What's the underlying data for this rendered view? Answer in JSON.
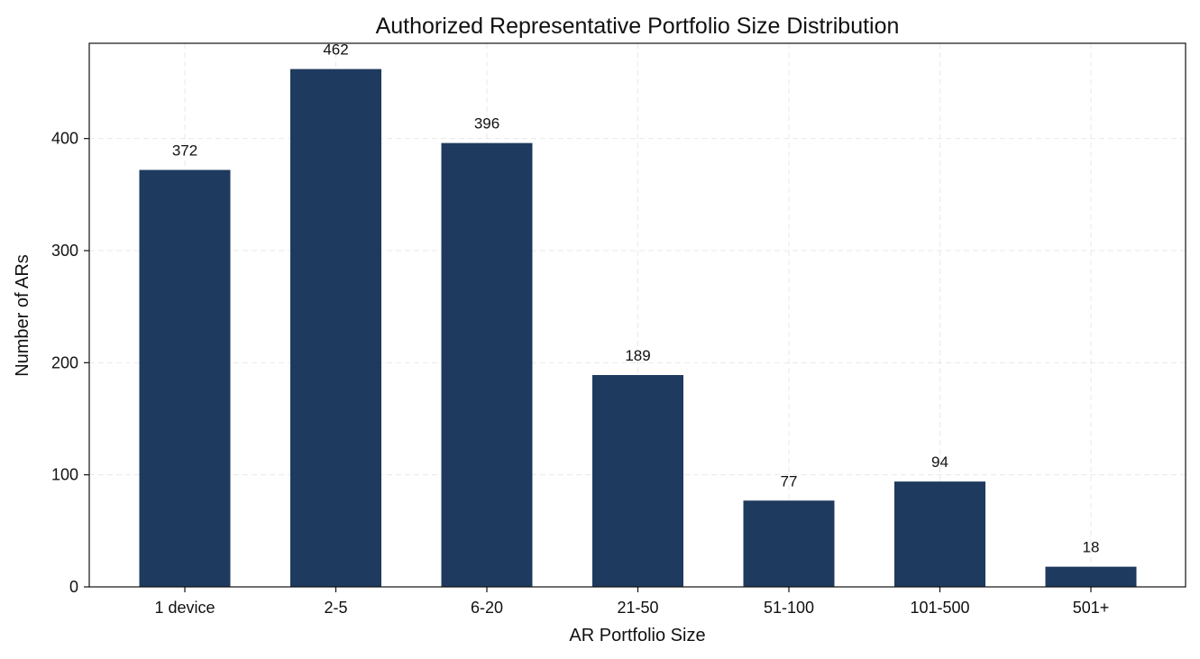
{
  "chart_data": {
    "type": "bar",
    "title": "Authorized Representative Portfolio Size Distribution",
    "xlabel": "AR Portfolio Size",
    "ylabel": "Number of ARs",
    "categories": [
      "1 device",
      "2-5",
      "6-20",
      "21-50",
      "51-100",
      "101-500",
      "501+"
    ],
    "values": [
      372,
      462,
      396,
      189,
      77,
      94,
      18
    ],
    "data_labels": [
      "372",
      "462",
      "396",
      "189",
      "77",
      "94",
      "18"
    ],
    "ylim": [
      0,
      485
    ],
    "yticks": [
      0,
      100,
      200,
      300,
      400
    ],
    "ytick_labels": [
      "0",
      "100",
      "200",
      "300",
      "400"
    ],
    "grid": true,
    "legend": "none",
    "bar_color": "#1f3a5f",
    "grid_color": "#d9d9d9"
  }
}
